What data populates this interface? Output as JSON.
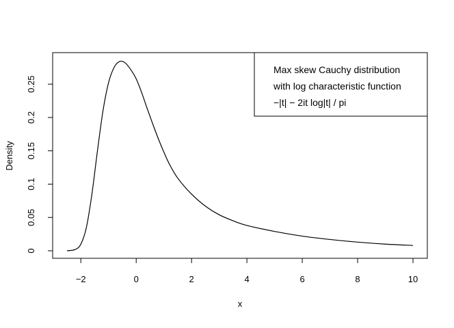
{
  "chart_data": {
    "type": "line",
    "title": "",
    "xlabel": "x",
    "ylabel": "Density",
    "xlim": [
      -2.5,
      10
    ],
    "ylim": [
      0,
      0.285
    ],
    "x_ticks": [
      -2,
      0,
      2,
      4,
      6,
      8,
      10
    ],
    "x_tick_labels": [
      "−2",
      "0",
      "2",
      "4",
      "6",
      "8",
      "10"
    ],
    "y_ticks": [
      0,
      0.05,
      0.1,
      0.15,
      0.2,
      0.25
    ],
    "y_tick_labels": [
      "0",
      "0.05",
      "0.1",
      "0.15",
      "0.2",
      "0.25"
    ],
    "grid": false,
    "legend_position": "top-right",
    "legend_lines": [
      "Max skew Cauchy distribution",
      "with log characteristic function",
      "−|t| − 2it log|t| / pi"
    ],
    "series": [
      {
        "x": [
          -2.5,
          -2.2,
          -2.0,
          -1.8,
          -1.6,
          -1.4,
          -1.2,
          -1.0,
          -0.8,
          -0.6,
          -0.4,
          -0.2,
          0.0,
          0.2,
          0.4,
          0.6,
          0.8,
          1.0,
          1.2,
          1.5,
          2.0,
          2.5,
          3.0,
          3.5,
          4.0,
          5.0,
          6.0,
          7.0,
          8.0,
          9.0,
          10.0
        ],
        "y": [
          0.0,
          0.002,
          0.01,
          0.035,
          0.085,
          0.15,
          0.21,
          0.252,
          0.275,
          0.284,
          0.282,
          0.272,
          0.258,
          0.237,
          0.213,
          0.19,
          0.168,
          0.148,
          0.13,
          0.109,
          0.085,
          0.067,
          0.054,
          0.045,
          0.038,
          0.029,
          0.022,
          0.017,
          0.013,
          0.01,
          0.008
        ]
      }
    ]
  }
}
